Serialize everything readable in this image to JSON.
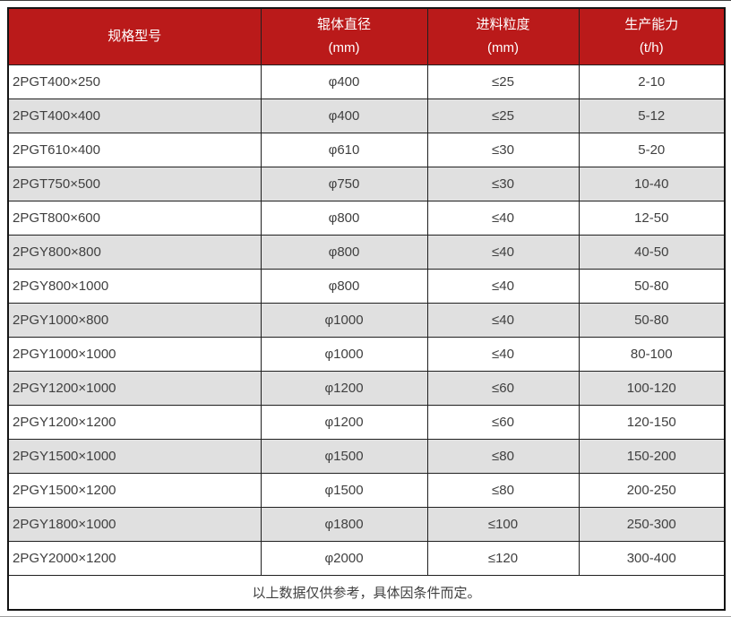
{
  "table": {
    "columns": [
      {
        "label": "规格型号",
        "unit": ""
      },
      {
        "label": "辊体直径",
        "unit": "(mm)"
      },
      {
        "label": "进料粒度",
        "unit": "(mm)"
      },
      {
        "label": "生产能力",
        "unit": "(t/h)"
      }
    ],
    "rows": [
      [
        "2PGT400×250",
        "φ400",
        "≤25",
        "2-10"
      ],
      [
        "2PGT400×400",
        "φ400",
        "≤25",
        "5-12"
      ],
      [
        "2PGT610×400",
        "φ610",
        "≤30",
        "5-20"
      ],
      [
        "2PGT750×500",
        "φ750",
        "≤30",
        "10-40"
      ],
      [
        "2PGT800×600",
        "φ800",
        "≤40",
        "12-50"
      ],
      [
        "2PGY800×800",
        "φ800",
        "≤40",
        "40-50"
      ],
      [
        "2PGY800×1000",
        "φ800",
        "≤40",
        "50-80"
      ],
      [
        "2PGY1000×800",
        "φ1000",
        "≤40",
        "50-80"
      ],
      [
        "2PGY1000×1000",
        "φ1000",
        "≤40",
        "80-100"
      ],
      [
        "2PGY1200×1000",
        "φ1200",
        "≤60",
        "100-120"
      ],
      [
        "2PGY1200×1200",
        "φ1200",
        "≤60",
        "120-150"
      ],
      [
        "2PGY1500×1000",
        "φ1500",
        "≤80",
        "150-200"
      ],
      [
        "2PGY1500×1200",
        "φ1500",
        "≤80",
        "200-250"
      ],
      [
        "2PGY1800×1000",
        "φ1800",
        "≤100",
        "250-300"
      ],
      [
        "2PGY2000×1200",
        "φ2000",
        "≤120",
        "300-400"
      ]
    ],
    "footnote": "以上数据仅供参考，具体因条件而定。"
  },
  "colors": {
    "header_bg": "#BA1A1A",
    "header_text": "#FFFFFF",
    "row_alt_bg": "#E0E0E0",
    "body_text": "#404040",
    "grid_border": "#202020",
    "grid_outer": "#141414"
  }
}
